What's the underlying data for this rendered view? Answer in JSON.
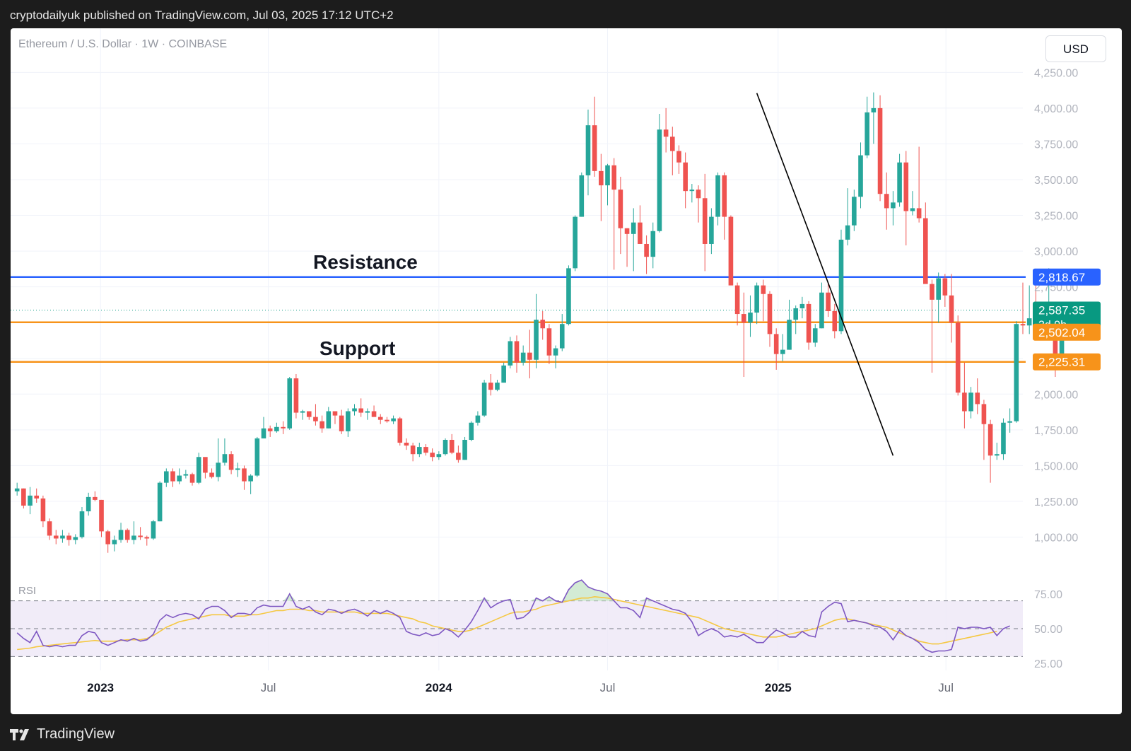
{
  "header": {
    "publisher_line": "cryptodailyuk published on TradingView.com, Jul 03, 2025 17:12 UTC+2"
  },
  "footer": {
    "brand": "TradingView"
  },
  "chart": {
    "symbol_line": "Ethereum / U.S. Dollar · 1W · COINBASE",
    "currency_button": "USD",
    "annotations": {
      "resistance": "Resistance",
      "support": "Support"
    },
    "price_badges": {
      "resistance": {
        "value": "2,818.67",
        "color": "#2962ff"
      },
      "last": {
        "value": "2,587.35",
        "sub": "3d 9h",
        "color": "#089981"
      },
      "support_upper": {
        "value": "2,502.04",
        "color": "#f7931a"
      },
      "support_lower": {
        "value": "2,225.31",
        "color": "#f7931a"
      }
    },
    "rsi_label": "RSI",
    "colors": {
      "up": "#26a69a",
      "down": "#ef5350",
      "rsi": "#7e57c2",
      "rsi_ma": "#f5c842",
      "trendline": "#000000"
    }
  },
  "chart_data": {
    "type": "candlestick",
    "title": "Ethereum / U.S. Dollar · 1W · COINBASE",
    "x_ticks": [
      {
        "label": "2023",
        "date": "2023-01-01",
        "bold": true
      },
      {
        "label": "Jul",
        "date": "2023-07-01",
        "bold": false
      },
      {
        "label": "2024",
        "date": "2024-01-01",
        "bold": true
      },
      {
        "label": "Jul",
        "date": "2024-07-01",
        "bold": false
      },
      {
        "label": "2025",
        "date": "2025-01-01",
        "bold": true
      },
      {
        "label": "Jul",
        "date": "2025-07-01",
        "bold": false
      }
    ],
    "x_range": [
      "2022-09-26",
      "2025-09-22"
    ],
    "y_ticks": [
      "1,000.00",
      "1,250.00",
      "1,500.00",
      "1,750.00",
      "2,000.00",
      "2,250.00",
      "2,500.00",
      "2,750.00",
      "3,000.00",
      "3,250.00",
      "3,500.00",
      "3,750.00",
      "4,000.00",
      "4,250.00"
    ],
    "ylim": [
      760,
      4410
    ],
    "levels": {
      "resistance": 2818.67,
      "last_price": 2587.35,
      "support_upper": 2502.04,
      "support_lower": 2225.31
    },
    "trendline": {
      "from": {
        "date": "2024-12-09",
        "price": 4105
      },
      "to": {
        "date": "2025-05-05",
        "price": 1570
      }
    },
    "first_candle_date": "2022-10-03",
    "candles_ohlc": [
      [
        1320,
        1380,
        1290,
        1340
      ],
      [
        1340,
        1340,
        1200,
        1220
      ],
      [
        1220,
        1350,
        1160,
        1290
      ],
      [
        1290,
        1340,
        1240,
        1270
      ],
      [
        1270,
        1290,
        1070,
        1110
      ],
      [
        1110,
        1130,
        980,
        1010
      ],
      [
        1010,
        1050,
        950,
        990
      ],
      [
        990,
        1050,
        960,
        1010
      ],
      [
        1010,
        1030,
        940,
        980
      ],
      [
        980,
        1020,
        950,
        1000
      ],
      [
        1000,
        1210,
        990,
        1180
      ],
      [
        1180,
        1310,
        1150,
        1280
      ],
      [
        1280,
        1320,
        1250,
        1260
      ],
      [
        1260,
        1260,
        1000,
        1040
      ],
      [
        1040,
        1050,
        890,
        950
      ],
      [
        950,
        1010,
        900,
        980
      ],
      [
        980,
        1100,
        960,
        1050
      ],
      [
        1050,
        1060,
        960,
        980
      ],
      [
        980,
        1110,
        950,
        1010
      ],
      [
        1010,
        1070,
        980,
        1000
      ],
      [
        1000,
        1010,
        940,
        990
      ],
      [
        990,
        1120,
        980,
        1110
      ],
      [
        1110,
        1390,
        1110,
        1380
      ],
      [
        1380,
        1480,
        1350,
        1460
      ],
      [
        1460,
        1480,
        1350,
        1390
      ],
      [
        1390,
        1480,
        1370,
        1430
      ],
      [
        1430,
        1470,
        1410,
        1440
      ],
      [
        1440,
        1450,
        1360,
        1380
      ],
      [
        1380,
        1590,
        1370,
        1560
      ],
      [
        1560,
        1520,
        1410,
        1450
      ],
      [
        1450,
        1480,
        1410,
        1420
      ],
      [
        1420,
        1690,
        1390,
        1520
      ],
      [
        1520,
        1690,
        1500,
        1580
      ],
      [
        1580,
        1600,
        1440,
        1470
      ],
      [
        1470,
        1520,
        1420,
        1480
      ],
      [
        1480,
        1500,
        1330,
        1390
      ],
      [
        1390,
        1440,
        1300,
        1430
      ],
      [
        1430,
        1700,
        1420,
        1690
      ],
      [
        1690,
        1840,
        1690,
        1760
      ],
      [
        1760,
        1780,
        1700,
        1740
      ],
      [
        1740,
        1800,
        1730,
        1770
      ],
      [
        1770,
        1810,
        1720,
        1760
      ],
      [
        1760,
        2120,
        1750,
        2110
      ],
      [
        2110,
        2140,
        1830,
        1870
      ],
      [
        1870,
        1890,
        1820,
        1880
      ],
      [
        1880,
        1880,
        1820,
        1840
      ],
      [
        1840,
        1930,
        1780,
        1810
      ],
      [
        1810,
        1850,
        1730,
        1760
      ],
      [
        1760,
        1910,
        1760,
        1880
      ],
      [
        1880,
        1880,
        1790,
        1850
      ],
      [
        1850,
        1890,
        1720,
        1740
      ],
      [
        1740,
        1900,
        1700,
        1880
      ],
      [
        1880,
        1930,
        1850,
        1900
      ],
      [
        1900,
        1970,
        1840,
        1870
      ],
      [
        1870,
        1900,
        1820,
        1880
      ],
      [
        1880,
        1920,
        1860,
        1840
      ],
      [
        1840,
        1860,
        1790,
        1820
      ],
      [
        1820,
        1840,
        1800,
        1810
      ],
      [
        1810,
        1850,
        1790,
        1830
      ],
      [
        1830,
        1840,
        1640,
        1660
      ],
      [
        1660,
        1690,
        1610,
        1640
      ],
      [
        1640,
        1660,
        1530,
        1580
      ],
      [
        1580,
        1660,
        1560,
        1630
      ],
      [
        1630,
        1650,
        1570,
        1590
      ],
      [
        1590,
        1620,
        1530,
        1560
      ],
      [
        1560,
        1600,
        1540,
        1580
      ],
      [
        1580,
        1690,
        1570,
        1680
      ],
      [
        1680,
        1720,
        1580,
        1590
      ],
      [
        1590,
        1640,
        1520,
        1540
      ],
      [
        1540,
        1700,
        1540,
        1680
      ],
      [
        1680,
        1810,
        1670,
        1800
      ],
      [
        1800,
        1880,
        1780,
        1850
      ],
      [
        1850,
        2100,
        1840,
        2080
      ],
      [
        2080,
        2140,
        1990,
        2030
      ],
      [
        2030,
        2100,
        2020,
        2080
      ],
      [
        2080,
        2220,
        2080,
        2200
      ],
      [
        2200,
        2400,
        2180,
        2370
      ],
      [
        2370,
        2410,
        2150,
        2220
      ],
      [
        2220,
        2340,
        2200,
        2290
      ],
      [
        2290,
        2450,
        2110,
        2240
      ],
      [
        2240,
        2700,
        2180,
        2520
      ],
      [
        2520,
        2580,
        2380,
        2460
      ],
      [
        2460,
        2490,
        2210,
        2270
      ],
      [
        2270,
        2340,
        2180,
        2320
      ],
      [
        2320,
        2560,
        2300,
        2490
      ],
      [
        2490,
        2900,
        2480,
        2880
      ],
      [
        2880,
        3250,
        2860,
        3240
      ],
      [
        3240,
        3550,
        3240,
        3530
      ],
      [
        3530,
        3990,
        3390,
        3880
      ],
      [
        3880,
        4080,
        3520,
        3560
      ],
      [
        3560,
        3680,
        3210,
        3460
      ],
      [
        3460,
        3610,
        3320,
        3600
      ],
      [
        3600,
        3650,
        2870,
        3430
      ],
      [
        3430,
        3520,
        2980,
        3160
      ],
      [
        3160,
        3160,
        2890,
        3120
      ],
      [
        3120,
        3300,
        2860,
        3200
      ],
      [
        3200,
        3320,
        3050,
        3050
      ],
      [
        3050,
        3110,
        2840,
        2960
      ],
      [
        2960,
        3200,
        2880,
        3140
      ],
      [
        3140,
        3960,
        3130,
        3850
      ],
      [
        3850,
        4000,
        3690,
        3800
      ],
      [
        3800,
        3870,
        3530,
        3700
      ],
      [
        3700,
        3740,
        3540,
        3620
      ],
      [
        3620,
        3690,
        3300,
        3420
      ],
      [
        3420,
        3470,
        3340,
        3430
      ],
      [
        3430,
        3460,
        3200,
        3370
      ],
      [
        3370,
        3540,
        2860,
        3050
      ],
      [
        3050,
        3300,
        2980,
        3240
      ],
      [
        3240,
        3550,
        3180,
        3530
      ],
      [
        3530,
        3550,
        3080,
        3240
      ],
      [
        3240,
        3250,
        2810,
        2760
      ],
      [
        2760,
        2780,
        2480,
        2560
      ],
      [
        2560,
        2710,
        2120,
        2500
      ],
      [
        2500,
        2690,
        2400,
        2570
      ],
      [
        2570,
        2780,
        2490,
        2760
      ],
      [
        2760,
        2800,
        2510,
        2700
      ],
      [
        2700,
        2720,
        2330,
        2420
      ],
      [
        2420,
        2460,
        2170,
        2280
      ],
      [
        2280,
        2420,
        2230,
        2310
      ],
      [
        2310,
        2660,
        2310,
        2520
      ],
      [
        2520,
        2620,
        2420,
        2600
      ],
      [
        2600,
        2680,
        2530,
        2630
      ],
      [
        2630,
        2650,
        2310,
        2360
      ],
      [
        2360,
        2490,
        2330,
        2460
      ],
      [
        2460,
        2780,
        2460,
        2710
      ],
      [
        2710,
        2780,
        2540,
        2580
      ],
      [
        2580,
        2630,
        2390,
        2440
      ],
      [
        2440,
        3150,
        2420,
        3080
      ],
      [
        3080,
        3440,
        3040,
        3180
      ],
      [
        3180,
        3430,
        3140,
        3380
      ],
      [
        3380,
        3760,
        3300,
        3670
      ],
      [
        3670,
        4080,
        3650,
        3970
      ],
      [
        3970,
        4110,
        3750,
        4000
      ],
      [
        4000,
        4090,
        3350,
        3400
      ],
      [
        3400,
        3550,
        3150,
        3300
      ],
      [
        3300,
        3420,
        3180,
        3340
      ],
      [
        3340,
        3680,
        3310,
        3620
      ],
      [
        3620,
        3700,
        3040,
        3280
      ],
      [
        3280,
        3420,
        3250,
        3300
      ],
      [
        3300,
        3730,
        3200,
        3230
      ],
      [
        3230,
        3340,
        2780,
        2770
      ],
      [
        2770,
        2800,
        2150,
        2660
      ],
      [
        2660,
        2850,
        2500,
        2810
      ],
      [
        2810,
        2840,
        2610,
        2690
      ],
      [
        2690,
        2840,
        2360,
        2500
      ],
      [
        2500,
        2550,
        1990,
        2010
      ],
      [
        2010,
        2220,
        1760,
        1880
      ],
      [
        1880,
        2050,
        1830,
        2010
      ],
      [
        2010,
        2110,
        1860,
        1930
      ],
      [
        1930,
        1960,
        1540,
        1790
      ],
      [
        1790,
        1820,
        1380,
        1570
      ],
      [
        1570,
        1660,
        1540,
        1580
      ],
      [
        1580,
        1830,
        1540,
        1800
      ],
      [
        1800,
        1900,
        1730,
        1810
      ],
      [
        1810,
        2510,
        1800,
        2490
      ],
      [
        2490,
        2780,
        2420,
        2480
      ],
      [
        2480,
        2760,
        2420,
        2530
      ],
      [
        2530,
        2800,
        2480,
        2510
      ],
      [
        2510,
        2640,
        2430,
        2510
      ],
      [
        2510,
        2880,
        2460,
        2540
      ],
      [
        2540,
        2620,
        2120,
        2220
      ],
      [
        2220,
        2610,
        2190,
        2480
      ],
      [
        2480,
        2630,
        2420,
        2587
      ]
    ],
    "rsi": {
      "ylim": [
        20,
        80
      ],
      "y_ticks": [
        "25.00",
        "50.00",
        "75.00"
      ],
      "bands": [
        30,
        50,
        70
      ],
      "values": [
        47,
        43,
        40,
        48,
        38,
        37,
        38,
        37,
        38,
        38,
        45,
        48,
        47,
        40,
        38,
        40,
        42,
        41,
        43,
        41,
        42,
        46,
        56,
        60,
        58,
        60,
        61,
        60,
        57,
        64,
        66,
        66,
        63,
        58,
        61,
        61,
        60,
        65,
        67,
        66,
        66,
        66,
        75,
        66,
        64,
        66,
        62,
        60,
        64,
        63,
        61,
        63,
        64,
        62,
        59,
        63,
        61,
        63,
        61,
        58,
        48,
        46,
        45,
        47,
        45,
        46,
        50,
        48,
        44,
        49,
        55,
        63,
        72,
        65,
        68,
        70,
        71,
        57,
        58,
        62,
        72,
        70,
        73,
        70,
        69,
        78,
        83,
        85,
        80,
        78,
        77,
        75,
        70,
        65,
        65,
        63,
        58,
        72,
        70,
        68,
        66,
        64,
        63,
        61,
        55,
        45,
        48,
        50,
        48,
        44,
        45,
        44,
        46,
        43,
        40,
        40,
        45,
        49,
        47,
        44,
        44,
        48,
        45,
        44,
        62,
        66,
        69,
        68,
        55,
        56,
        55,
        54,
        52,
        51,
        48,
        42,
        49,
        45,
        43,
        40,
        35,
        33,
        34,
        34,
        35,
        51,
        50,
        51,
        51,
        50,
        51,
        45,
        50,
        52
      ],
      "ma_values": [
        35,
        35.5,
        36,
        37,
        37.5,
        38,
        38.5,
        39,
        39.5,
        40,
        40.5,
        41,
        41.5,
        41,
        41,
        41,
        41.5,
        42,
        42,
        42,
        43,
        45,
        48,
        51,
        53,
        55,
        56,
        57,
        58,
        59,
        60,
        60,
        60,
        59,
        59,
        59,
        60,
        60,
        61,
        62,
        63,
        63,
        64,
        64,
        64,
        63,
        63,
        62,
        62,
        62,
        62,
        62,
        62,
        61,
        61,
        61,
        61,
        61,
        60,
        59,
        58,
        57,
        55,
        54,
        52,
        51,
        50,
        49,
        48,
        48,
        49,
        51,
        53,
        55,
        57,
        59,
        61,
        62,
        62,
        63,
        64,
        66,
        67,
        68,
        69,
        70,
        71,
        72,
        72,
        73,
        72.5,
        72,
        71,
        70,
        69,
        68,
        67,
        66,
        65,
        64,
        63,
        62,
        61,
        60,
        59,
        58,
        56,
        54,
        52,
        50,
        49,
        48,
        47,
        46,
        45,
        44,
        44,
        44,
        45,
        46,
        47,
        48,
        49,
        50,
        52,
        54,
        56,
        57,
        57,
        56,
        55,
        54,
        53,
        52,
        51,
        49,
        47,
        45,
        43,
        41,
        40,
        39,
        39,
        40,
        41,
        42,
        43,
        44,
        45,
        46,
        47,
        48
      ]
    }
  }
}
